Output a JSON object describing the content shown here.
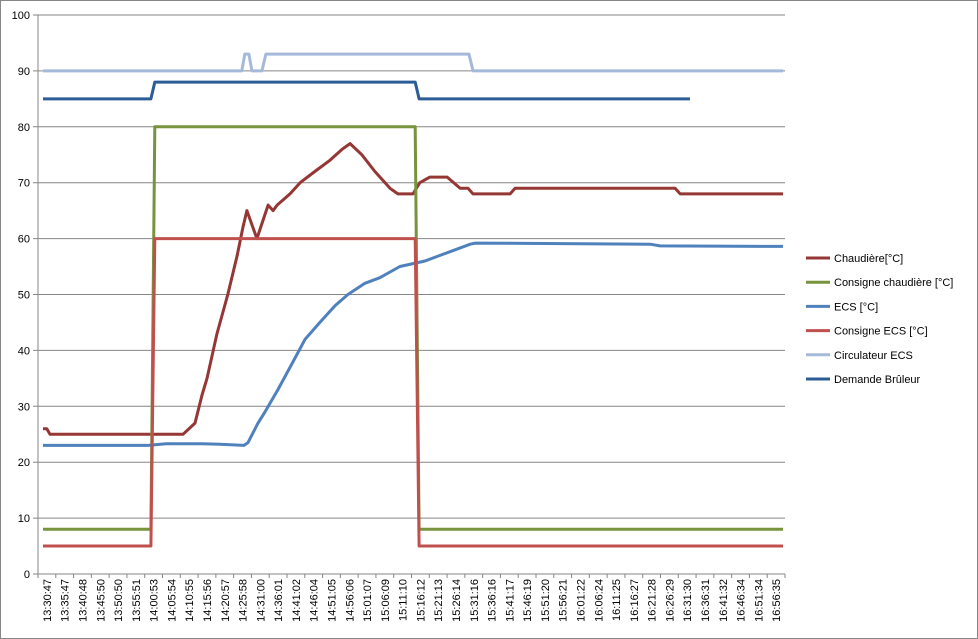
{
  "chart_data": {
    "type": "line",
    "title": "",
    "xlabel": "",
    "ylabel": "",
    "ylim": [
      0,
      100
    ],
    "yticks": [
      0,
      10,
      20,
      30,
      40,
      50,
      60,
      70,
      80,
      90,
      100
    ],
    "grid": true,
    "legend_position": "right",
    "xticks": [
      "13:30:47",
      "13:35:47",
      "13:40:48",
      "13:45:50",
      "13:50:50",
      "13:55:51",
      "14:00:53",
      "14:05:54",
      "14:10:55",
      "14:15:56",
      "14:20:57",
      "14:25:58",
      "14:31:00",
      "14:36:01",
      "14:41:02",
      "14:46:04",
      "14:51:05",
      "14:56:06",
      "15:01:07",
      "15:06:09",
      "15:11:10",
      "15:16:12",
      "15:21:13",
      "15:26:14",
      "15:31:16",
      "15:36:16",
      "15:41:17",
      "15:46:19",
      "15:51:20",
      "15:56:21",
      "16:01:22",
      "16:06:24",
      "16:11:25",
      "16:16:27",
      "16:21:28",
      "16:26:29",
      "16:31:30",
      "16:36:31",
      "16:41:32",
      "16:46:34",
      "16:51:34",
      "16:56:35"
    ],
    "series": [
      {
        "name": "Chaudière[°C]",
        "color": "#953735",
        "points": [
          [
            "13:30:47",
            26
          ],
          [
            "13:31:50",
            26
          ],
          [
            "13:32:44",
            25
          ],
          [
            "14:09:43",
            25
          ],
          [
            "14:13:03",
            27
          ],
          [
            "14:15:00",
            32
          ],
          [
            "14:16:23",
            35
          ],
          [
            "14:19:11",
            43
          ],
          [
            "14:22:11",
            50
          ],
          [
            "14:24:47",
            57
          ],
          [
            "14:26:23",
            62
          ],
          [
            "14:27:29",
            65
          ],
          [
            "14:30:17",
            60
          ],
          [
            "14:33:23",
            66
          ],
          [
            "14:34:47",
            65
          ],
          [
            "14:35:53",
            66
          ],
          [
            "14:39:29",
            68
          ],
          [
            "14:42:17",
            70
          ],
          [
            "14:46:23",
            72
          ],
          [
            "14:50:35",
            74
          ],
          [
            "14:53:59",
            76
          ],
          [
            "14:56:11",
            77
          ],
          [
            "14:59:29",
            75
          ],
          [
            "15:03:05",
            72
          ],
          [
            "15:07:17",
            69
          ],
          [
            "15:09:29",
            68
          ],
          [
            "15:13:41",
            68
          ],
          [
            "15:15:35",
            70
          ],
          [
            "15:18:23",
            71
          ],
          [
            "15:23:11",
            71
          ],
          [
            "15:26:47",
            69
          ],
          [
            "15:28:59",
            69
          ],
          [
            "15:30:23",
            68
          ],
          [
            "15:40:41",
            68
          ],
          [
            "15:42:05",
            69
          ],
          [
            "16:26:35",
            69
          ],
          [
            "16:27:59",
            68
          ],
          [
            "16:56:35",
            68
          ]
        ]
      },
      {
        "name": "Consigne chaudière [°C]",
        "color": "#77933C",
        "points": [
          [
            "13:30:47",
            8
          ],
          [
            "14:00:47",
            8
          ],
          [
            "14:01:53",
            80
          ],
          [
            "15:14:17",
            80
          ],
          [
            "15:15:23",
            8
          ],
          [
            "16:56:35",
            8
          ]
        ]
      },
      {
        "name": "ECS [°C]",
        "color": "#4F81BD",
        "points": [
          [
            "13:30:47",
            23
          ],
          [
            "14:00:00",
            23
          ],
          [
            "14:05:00",
            23.3
          ],
          [
            "14:15:00",
            23.3
          ],
          [
            "14:20:00",
            23.2
          ],
          [
            "14:26:40",
            23
          ],
          [
            "14:27:47",
            23.5
          ],
          [
            "14:30:35",
            27
          ],
          [
            "14:32:32",
            29
          ],
          [
            "14:36:08",
            33
          ],
          [
            "14:40:20",
            38
          ],
          [
            "14:43:41",
            42
          ],
          [
            "14:47:47",
            45
          ],
          [
            "14:51:59",
            48
          ],
          [
            "14:55:35",
            50
          ],
          [
            "15:00:19",
            52
          ],
          [
            "15:04:29",
            53
          ],
          [
            "15:10:03",
            55
          ],
          [
            "15:17:01",
            56
          ],
          [
            "15:21:11",
            57
          ],
          [
            "15:25:23",
            58
          ],
          [
            "15:29:35",
            59
          ],
          [
            "15:30:59",
            59.2
          ],
          [
            "16:19:39",
            59
          ],
          [
            "16:22:25",
            58.7
          ],
          [
            "16:56:35",
            58.6
          ]
        ]
      },
      {
        "name": "Consigne ECS [°C]",
        "color": "#C0504D",
        "points": [
          [
            "13:30:47",
            5
          ],
          [
            "14:00:47",
            5
          ],
          [
            "14:01:53",
            60
          ],
          [
            "15:14:17",
            60
          ],
          [
            "15:15:23",
            5
          ],
          [
            "16:56:35",
            5
          ]
        ]
      },
      {
        "name": "Circulateur ECS",
        "color": "#A5B9D9",
        "points": [
          [
            "13:30:47",
            90
          ],
          [
            "14:26:05",
            90
          ],
          [
            "14:26:55",
            93
          ],
          [
            "14:28:02",
            93
          ],
          [
            "14:28:52",
            90
          ],
          [
            "14:31:39",
            90
          ],
          [
            "14:32:46",
            93
          ],
          [
            "15:29:16",
            93
          ],
          [
            "15:30:23",
            90
          ],
          [
            "16:56:35",
            90
          ]
        ]
      },
      {
        "name": "Demande Brûleur",
        "color": "#2C5D96",
        "points": [
          [
            "13:30:47",
            85
          ],
          [
            "14:00:47",
            85
          ],
          [
            "14:01:53",
            88
          ],
          [
            "15:14:17",
            88
          ],
          [
            "15:15:23",
            85
          ],
          [
            "16:30:43",
            85
          ]
        ]
      }
    ]
  }
}
